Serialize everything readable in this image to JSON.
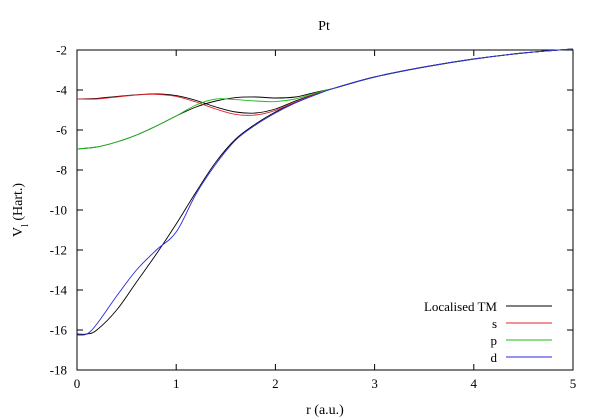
{
  "chart_data": {
    "type": "line",
    "title": "Pt",
    "xlabel": "r (a.u.)",
    "ylabel_main": "V",
    "ylabel_sub": "l",
    "ylabel_rest": " (Hart.)",
    "xlim": [
      0,
      5
    ],
    "ylim": [
      -18,
      -2
    ],
    "xticks": [
      0,
      1,
      2,
      3,
      4,
      5
    ],
    "yticks": [
      -18,
      -16,
      -14,
      -12,
      -10,
      -8,
      -6,
      -4,
      -2
    ],
    "grid": false,
    "legend_position": "bottom-right",
    "series": [
      {
        "name": "Localised TM",
        "color": "#000000",
        "role": "tm_s",
        "x": [
          0,
          0.2,
          0.4,
          0.6,
          0.8,
          1.0,
          1.2,
          1.4,
          1.6,
          1.8,
          2.0,
          2.2,
          2.4,
          2.6,
          3.0,
          3.5,
          4.0,
          4.5,
          5.0
        ],
        "y": [
          -4.45,
          -4.42,
          -4.32,
          -4.24,
          -4.2,
          -4.28,
          -4.52,
          -4.85,
          -5.1,
          -5.15,
          -4.95,
          -4.55,
          -4.2,
          -3.9,
          -3.35,
          -2.85,
          -2.45,
          -2.15,
          -1.95
        ]
      },
      {
        "name": "",
        "color": "#000000",
        "role": "tm_p",
        "x": [
          0,
          0.2,
          0.4,
          0.6,
          0.8,
          1.0,
          1.2,
          1.4,
          1.6,
          1.8,
          2.0,
          2.2,
          2.4,
          2.6,
          3.0,
          3.5,
          4.0,
          4.5,
          5.0
        ],
        "y": [
          -6.95,
          -6.85,
          -6.6,
          -6.25,
          -5.8,
          -5.3,
          -4.85,
          -4.55,
          -4.38,
          -4.35,
          -4.4,
          -4.35,
          -4.12,
          -3.9,
          -3.35,
          -2.85,
          -2.45,
          -2.15,
          -1.95
        ]
      },
      {
        "name": "",
        "color": "#000000",
        "role": "tm_d",
        "x": [
          0,
          0.1,
          0.2,
          0.4,
          0.6,
          0.8,
          1.0,
          1.2,
          1.4,
          1.6,
          1.8,
          2.0,
          2.2,
          2.4,
          2.6,
          3.0,
          3.5,
          4.0,
          4.5,
          5.0
        ],
        "y": [
          -16.2,
          -16.2,
          -16.0,
          -15.0,
          -13.6,
          -12.2,
          -10.7,
          -9.1,
          -7.6,
          -6.45,
          -5.7,
          -5.1,
          -4.62,
          -4.22,
          -3.9,
          -3.35,
          -2.85,
          -2.45,
          -2.15,
          -1.95
        ]
      },
      {
        "name": "s",
        "color": "#e0262e",
        "x": [
          0,
          0.2,
          0.4,
          0.6,
          0.8,
          1.0,
          1.2,
          1.4,
          1.6,
          1.8,
          2.0,
          2.2,
          2.4,
          2.6,
          3.0,
          3.5,
          4.0,
          4.5,
          5.0
        ],
        "y": [
          -4.45,
          -4.45,
          -4.35,
          -4.25,
          -4.22,
          -4.32,
          -4.6,
          -4.95,
          -5.22,
          -5.25,
          -5.02,
          -4.6,
          -4.22,
          -3.9,
          -3.35,
          -2.85,
          -2.45,
          -2.15,
          -1.95
        ]
      },
      {
        "name": "p",
        "color": "#1dbb1d",
        "x": [
          0,
          0.2,
          0.4,
          0.6,
          0.8,
          1.0,
          1.2,
          1.4,
          1.6,
          1.8,
          2.0,
          2.2,
          2.4,
          2.6,
          3.0,
          3.5,
          4.0,
          4.5,
          5.0
        ],
        "y": [
          -6.95,
          -6.85,
          -6.6,
          -6.25,
          -5.8,
          -5.3,
          -4.75,
          -4.45,
          -4.48,
          -4.55,
          -4.58,
          -4.45,
          -4.15,
          -3.9,
          -3.35,
          -2.85,
          -2.45,
          -2.15,
          -1.95
        ]
      },
      {
        "name": "d",
        "color": "#2a2ae0",
        "x": [
          0,
          0.1,
          0.2,
          0.4,
          0.6,
          0.8,
          1.0,
          1.2,
          1.4,
          1.6,
          1.8,
          2.0,
          2.2,
          2.4,
          2.6,
          3.0,
          3.5,
          4.0,
          4.5,
          5.0
        ],
        "y": [
          -16.25,
          -16.2,
          -15.7,
          -14.3,
          -13.0,
          -12.0,
          -11.1,
          -9.2,
          -7.7,
          -6.5,
          -5.75,
          -5.15,
          -4.65,
          -4.25,
          -3.9,
          -3.35,
          -2.85,
          -2.45,
          -2.15,
          -1.95
        ]
      }
    ]
  }
}
